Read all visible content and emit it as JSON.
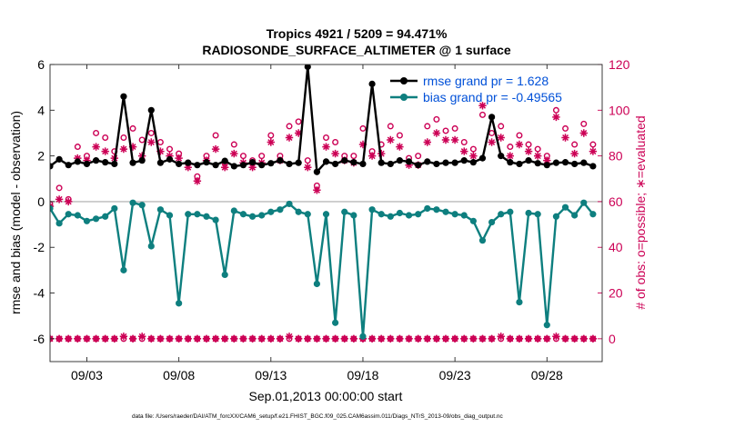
{
  "chart_data": {
    "type": "line",
    "title_line1": "Tropics 4921 / 5209 = 94.471%",
    "title_line2": "RADIOSONDE_SURFACE_ALTIMETER @ 1 surface",
    "xlabel": "Sep.01,2013 00:00:00 start",
    "ylabel_left": "rmse and bias (model - observation)",
    "ylabel_right": "# of obs: o=possible; ∗=evaluated",
    "footer": "data file: /Users/raeder/DAI/ATM_forcXX/CAM6_setup/f.e21.FHIST_BGC.f09_025.CAM6assim.011/Diags_NTrS_2013-09/obs_diag_output.nc",
    "xlim": [
      1.0,
      31.0
    ],
    "ylim_left": [
      -7,
      6
    ],
    "ylim_right": [
      -10,
      120
    ],
    "x_ticks": [
      3,
      8,
      13,
      18,
      23,
      28
    ],
    "x_tick_labels": [
      "09/03",
      "09/08",
      "09/13",
      "09/18",
      "09/23",
      "09/28"
    ],
    "y_left_ticks": [
      -6,
      -4,
      -2,
      0,
      2,
      4,
      6
    ],
    "y_left_tick_labels": [
      "-6",
      "-4",
      "-2",
      "0",
      "2",
      "4",
      "6"
    ],
    "y_right_ticks": [
      0,
      20,
      40,
      60,
      80,
      100,
      120
    ],
    "y_right_tick_labels": [
      "0",
      "20",
      "40",
      "60",
      "80",
      "100",
      "120"
    ],
    "legend": {
      "placement": "top-right",
      "entries": [
        "rmse grand pr = 1.628",
        "bias grand pr = -0.49565"
      ]
    },
    "colors": {
      "rmse": "#000000",
      "bias": "#0e7f7f",
      "obs": "#cc0055",
      "zero_line": "#bbbbbb"
    },
    "x": [
      1.0,
      1.5,
      2.0,
      2.5,
      3.0,
      3.5,
      4.0,
      4.5,
      5.0,
      5.5,
      6.0,
      6.5,
      7.0,
      7.5,
      8.0,
      8.5,
      9.0,
      9.5,
      10.0,
      10.5,
      11.0,
      11.5,
      12.0,
      12.5,
      13.0,
      13.5,
      14.0,
      14.5,
      15.0,
      15.5,
      16.0,
      16.5,
      17.0,
      17.5,
      18.0,
      18.5,
      19.0,
      19.5,
      20.0,
      20.5,
      21.0,
      21.5,
      22.0,
      22.5,
      23.0,
      23.5,
      24.0,
      24.5,
      25.0,
      25.5,
      26.0,
      26.5,
      27.0,
      27.5,
      28.0,
      28.5,
      29.0,
      29.5,
      30.0,
      30.5
    ],
    "series": [
      {
        "name": "rmse",
        "axis": "left",
        "values": [
          1.55,
          1.85,
          1.6,
          1.75,
          1.65,
          1.8,
          1.72,
          1.65,
          4.6,
          1.7,
          1.8,
          4.0,
          1.7,
          1.85,
          1.65,
          1.7,
          1.6,
          1.72,
          1.6,
          1.78,
          1.55,
          1.6,
          1.72,
          1.6,
          1.68,
          1.8,
          1.65,
          1.7,
          5.9,
          1.3,
          1.75,
          1.65,
          1.8,
          1.72,
          1.65,
          5.15,
          1.7,
          1.65,
          1.8,
          1.75,
          1.6,
          1.75,
          1.65,
          1.7,
          1.7,
          1.8,
          1.72,
          1.9,
          3.7,
          2.0,
          1.72,
          1.65,
          1.8,
          1.68,
          1.6,
          1.7,
          1.72,
          1.65,
          1.7,
          1.55
        ]
      },
      {
        "name": "bias",
        "axis": "left",
        "values": [
          -0.3,
          -0.95,
          -0.55,
          -0.6,
          -0.85,
          -0.75,
          -0.65,
          -0.3,
          -3.0,
          -0.05,
          -0.15,
          -1.95,
          -0.35,
          -0.6,
          -4.45,
          -0.55,
          -0.55,
          -0.65,
          -0.8,
          -3.2,
          -0.4,
          -0.55,
          -0.65,
          -0.6,
          -0.45,
          -0.35,
          -0.1,
          -0.45,
          -0.55,
          -3.6,
          -0.55,
          -5.3,
          -0.45,
          -0.6,
          -5.9,
          -0.35,
          -0.55,
          -0.65,
          -0.5,
          -0.6,
          -0.55,
          -0.3,
          -0.35,
          -0.45,
          -0.55,
          -0.6,
          -0.85,
          -1.7,
          -0.9,
          -0.55,
          -0.45,
          -4.4,
          -0.5,
          -0.55,
          -5.4,
          -0.65,
          -0.25,
          -0.6,
          -0.05,
          -0.55
        ]
      },
      {
        "name": "obs_possible",
        "axis": "right",
        "marker": "o",
        "values": [
          59,
          66,
          61,
          84,
          80,
          90,
          88,
          82,
          88,
          92,
          87,
          90,
          86,
          83,
          81,
          77,
          71,
          80,
          89,
          77,
          85,
          80,
          78,
          80,
          89,
          80,
          93,
          95,
          78,
          67,
          88,
          86,
          80,
          80,
          92,
          82,
          85,
          93,
          89,
          79,
          80,
          93,
          96,
          91,
          92,
          86,
          83,
          98,
          90,
          93,
          84,
          89,
          85,
          83,
          80,
          100,
          92,
          85,
          94,
          85
        ]
      },
      {
        "name": "obs_evaluated",
        "axis": "right",
        "marker": "*",
        "values": [
          58,
          61,
          60,
          79,
          78,
          84,
          82,
          79,
          83,
          84,
          80,
          86,
          82,
          80,
          79,
          75,
          69,
          78,
          83,
          75,
          81,
          77,
          75,
          77,
          86,
          78,
          88,
          90,
          75,
          65,
          84,
          81,
          78,
          77,
          85,
          80,
          81,
          87,
          84,
          76,
          76,
          86,
          90,
          87,
          87,
          82,
          80,
          102,
          86,
          88,
          80,
          85,
          82,
          80,
          78,
          97,
          88,
          81,
          90,
          82
        ]
      },
      {
        "name": "obs_zero_possible",
        "axis": "right",
        "marker": "o",
        "values": [
          0,
          0,
          0,
          0,
          0,
          0,
          0,
          0,
          0,
          0,
          0,
          0,
          0,
          0,
          0,
          0,
          0,
          0,
          0,
          0,
          0,
          0,
          0,
          0,
          0,
          0,
          0,
          0,
          0,
          0,
          0,
          0,
          0,
          0,
          0,
          0,
          0,
          0,
          0,
          0,
          0,
          0,
          0,
          0,
          0,
          0,
          0,
          0,
          0,
          0,
          0,
          0,
          0,
          0,
          0,
          0,
          0,
          0,
          0,
          0
        ]
      },
      {
        "name": "obs_zero_evaluated",
        "axis": "right",
        "marker": "*",
        "values": [
          0,
          0,
          0,
          0,
          0,
          0,
          0,
          0,
          1,
          0,
          1,
          0,
          0,
          0,
          0,
          0,
          0,
          0,
          0,
          0,
          0,
          0,
          0,
          0,
          0,
          0,
          1,
          0,
          0,
          0,
          0,
          0,
          0,
          0,
          0,
          0,
          0,
          0,
          0,
          0,
          0,
          0,
          0,
          0,
          0,
          0,
          0,
          0,
          0,
          1,
          0,
          0,
          0,
          0,
          0,
          1,
          0,
          0,
          0,
          0
        ]
      }
    ]
  }
}
